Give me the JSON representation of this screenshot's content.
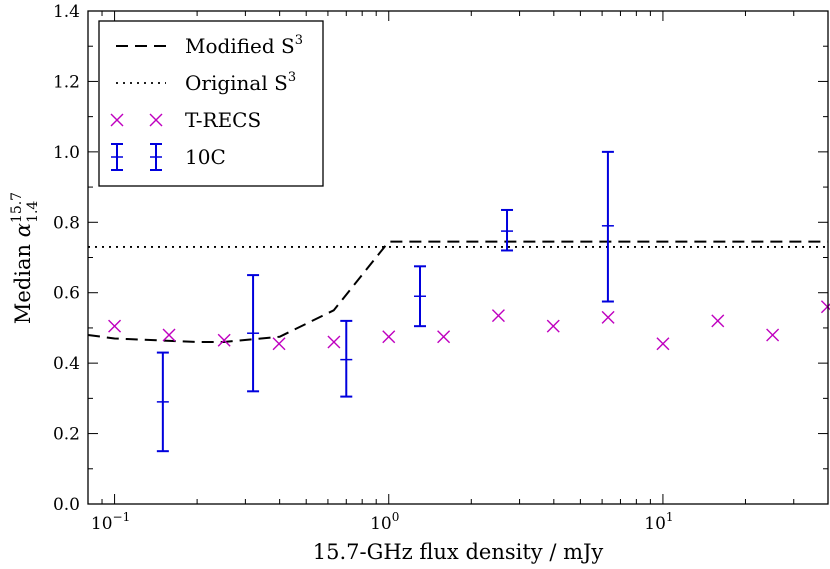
{
  "chart_data": {
    "type": "line",
    "xscale": "log",
    "xlim": [
      0.08,
      40
    ],
    "ylim": [
      0.0,
      1.4
    ],
    "xlabel": "15.7-GHz flux density / mJy",
    "ylabel": {
      "prefix": "Median ",
      "symbol": "α",
      "superscript": "15.7",
      "subscript": "1.4"
    },
    "xticks": [
      {
        "value": 0.1,
        "base": "10",
        "exp": "−1"
      },
      {
        "value": 1,
        "base": "10",
        "exp": "0"
      },
      {
        "value": 10,
        "base": "10",
        "exp": "1"
      }
    ],
    "yticks": [
      {
        "value": 0.0,
        "label": "0.0"
      },
      {
        "value": 0.2,
        "label": "0.2"
      },
      {
        "value": 0.4,
        "label": "0.4"
      },
      {
        "value": 0.6,
        "label": "0.6"
      },
      {
        "value": 0.8,
        "label": "0.8"
      },
      {
        "value": 1.0,
        "label": "1.0"
      },
      {
        "value": 1.2,
        "label": "1.2"
      },
      {
        "value": 1.4,
        "label": "1.4"
      }
    ],
    "legend_position": "top-left",
    "series": [
      {
        "name": "Modified S",
        "name_sup": "3",
        "kind": "line",
        "style": "dashed",
        "color": "#000000",
        "points": [
          [
            0.08,
            0.48
          ],
          [
            0.1,
            0.47
          ],
          [
            0.2,
            0.46
          ],
          [
            0.25,
            0.46
          ],
          [
            0.4,
            0.475
          ],
          [
            0.63,
            0.55
          ],
          [
            1.0,
            0.745
          ],
          [
            40,
            0.745
          ]
        ]
      },
      {
        "name": "Original S",
        "name_sup": "3",
        "kind": "line",
        "style": "dotted",
        "color": "#000000",
        "points": [
          [
            0.08,
            0.73
          ],
          [
            40,
            0.73
          ]
        ]
      },
      {
        "name": "T-RECS",
        "name_sup": "",
        "kind": "scatter",
        "marker": "x",
        "color": "#bf00bf",
        "points": [
          [
            0.1,
            0.505
          ],
          [
            0.158,
            0.48
          ],
          [
            0.251,
            0.465
          ],
          [
            0.398,
            0.455
          ],
          [
            0.631,
            0.46
          ],
          [
            1.0,
            0.475
          ],
          [
            1.585,
            0.475
          ],
          [
            2.512,
            0.535
          ],
          [
            3.981,
            0.505
          ],
          [
            6.31,
            0.53
          ],
          [
            10.0,
            0.455
          ],
          [
            15.85,
            0.52
          ],
          [
            25.12,
            0.48
          ],
          [
            39.81,
            0.56
          ]
        ]
      },
      {
        "name": "10C",
        "name_sup": "",
        "kind": "errorbar",
        "color": "#0000dd",
        "points": [
          {
            "x": 0.15,
            "y": 0.29,
            "lo": 0.15,
            "hi": 0.43
          },
          {
            "x": 0.32,
            "y": 0.485,
            "lo": 0.32,
            "hi": 0.65
          },
          {
            "x": 0.7,
            "y": 0.41,
            "lo": 0.305,
            "hi": 0.52
          },
          {
            "x": 1.3,
            "y": 0.59,
            "lo": 0.505,
            "hi": 0.675
          },
          {
            "x": 2.7,
            "y": 0.775,
            "lo": 0.72,
            "hi": 0.835
          },
          {
            "x": 6.3,
            "y": 0.79,
            "lo": 0.575,
            "hi": 1.0
          }
        ]
      }
    ]
  }
}
